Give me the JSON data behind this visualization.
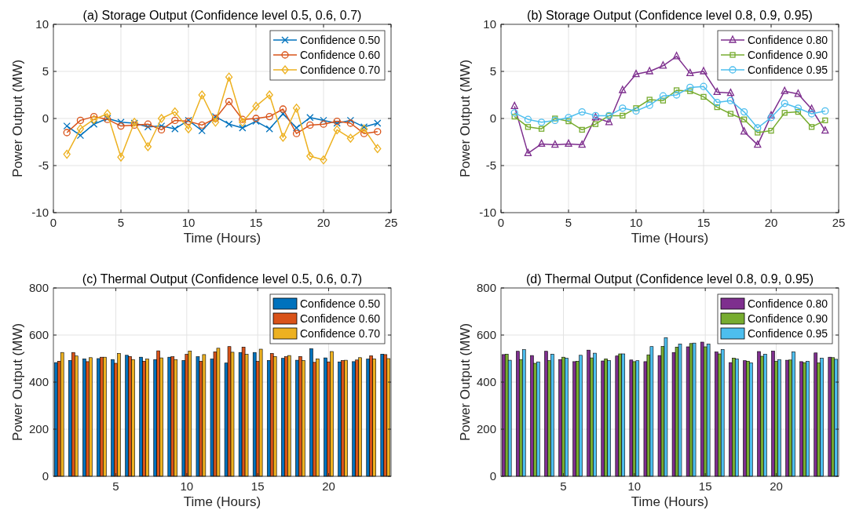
{
  "chart_data": [
    {
      "type": "line",
      "title": "(a) Storage Output (Confidence level 0.5, 0.6, 0.7)",
      "xlabel": "Time (Hours)",
      "ylabel": "Power Output (MW)",
      "x": [
        1,
        2,
        3,
        4,
        5,
        6,
        7,
        8,
        9,
        10,
        11,
        12,
        13,
        14,
        15,
        16,
        17,
        18,
        19,
        20,
        21,
        22,
        23,
        24
      ],
      "xlim": [
        0,
        25
      ],
      "xticks": [
        0,
        5,
        10,
        15,
        20,
        25
      ],
      "ylim": [
        -10,
        10
      ],
      "yticks": [
        -10,
        -5,
        0,
        5,
        10
      ],
      "grid": true,
      "legend": "top right",
      "series": [
        {
          "name": "Confidence 0.50",
          "color": "#0072bd",
          "marker": "cross",
          "values": [
            -0.8,
            -1.8,
            -0.6,
            0,
            -0.4,
            -0.5,
            -0.9,
            -0.8,
            -1.1,
            -0.2,
            -1.3,
            0.2,
            -0.6,
            -1.0,
            -0.3,
            -1.1,
            0.5,
            -1.0,
            0.1,
            -0.2,
            -0.5,
            -0.2,
            -0.9,
            -0.5
          ]
        },
        {
          "name": "Confidence 0.60",
          "color": "#d95319",
          "marker": "circle",
          "values": [
            -1.5,
            -0.2,
            0.2,
            -0.1,
            -0.8,
            -0.7,
            -0.6,
            -1.2,
            -0.2,
            -0.3,
            -0.7,
            0,
            1.8,
            -0.1,
            0,
            0.2,
            1.0,
            -1.6,
            -0.7,
            -0.6,
            -0.3,
            -0.5,
            -1.6,
            -1.4
          ]
        },
        {
          "name": "Confidence 0.70",
          "color": "#edb120",
          "marker": "diamond",
          "values": [
            -3.8,
            -1.1,
            -0.1,
            0.5,
            -4.1,
            -0.4,
            -3.0,
            0,
            0.7,
            -1.1,
            2.5,
            -0.4,
            4.4,
            -0.4,
            1.3,
            2.5,
            -2.0,
            1.1,
            -4.0,
            -4.4,
            -1.2,
            -2.1,
            -1.1,
            -3.2
          ]
        }
      ]
    },
    {
      "type": "line",
      "title": "(b) Storage Output (Confidence level 0.8, 0.9, 0.95)",
      "xlabel": "Time (Hours)",
      "ylabel": "Power Output (MW)",
      "x": [
        1,
        2,
        3,
        4,
        5,
        6,
        7,
        8,
        9,
        10,
        11,
        12,
        13,
        14,
        15,
        16,
        17,
        18,
        19,
        20,
        21,
        22,
        23,
        24
      ],
      "xlim": [
        0,
        25
      ],
      "xticks": [
        0,
        5,
        10,
        15,
        20,
        25
      ],
      "ylim": [
        -10,
        10
      ],
      "yticks": [
        -10,
        -5,
        0,
        5,
        10
      ],
      "grid": true,
      "legend": "top right",
      "series": [
        {
          "name": "Confidence 0.80",
          "color": "#7e2f8e",
          "marker": "triangle",
          "values": [
            1.3,
            -3.7,
            -2.7,
            -2.8,
            -2.7,
            -2.8,
            0.1,
            -0.4,
            3.0,
            4.7,
            5.0,
            5.6,
            6.6,
            4.8,
            5.0,
            2.8,
            2.7,
            -1.4,
            -2.8,
            0.3,
            2.9,
            2.6,
            1.0,
            -1.3
          ]
        },
        {
          "name": "Confidence 0.90",
          "color": "#77ac30",
          "marker": "square",
          "values": [
            0.2,
            -0.9,
            -1.1,
            0,
            -0.3,
            -1.2,
            -0.6,
            0.3,
            0.3,
            1.1,
            2.0,
            1.9,
            3.0,
            2.9,
            2.3,
            1.2,
            0.5,
            -0.1,
            -1.5,
            -1.3,
            0.6,
            0.7,
            -0.9,
            -0.2
          ]
        },
        {
          "name": "Confidence 0.95",
          "color": "#4dbeee",
          "marker": "circle",
          "values": [
            0.6,
            -0.1,
            -0.4,
            -0.2,
            0.1,
            0.7,
            0.3,
            0.3,
            1.1,
            0.8,
            1.4,
            2.4,
            2.5,
            3.3,
            3.4,
            1.7,
            1.9,
            0.7,
            -1.0,
            0.1,
            1.6,
            1.1,
            0.5,
            0.8
          ]
        }
      ]
    },
    {
      "type": "bar",
      "title": "(c) Thermal Output (Confidence level 0.5, 0.6, 0.7)",
      "xlabel": "Time (Hours)",
      "ylabel": "Power Output (MW)",
      "x": [
        1,
        2,
        3,
        4,
        5,
        6,
        7,
        8,
        9,
        10,
        11,
        12,
        13,
        14,
        15,
        16,
        17,
        18,
        19,
        20,
        21,
        22,
        23,
        24
      ],
      "xlim": [
        0.6,
        24.4
      ],
      "xticks": [
        5,
        10,
        15,
        20
      ],
      "ylim": [
        0,
        800
      ],
      "yticks": [
        0,
        200,
        400,
        600,
        800
      ],
      "grid": true,
      "legend": "top right",
      "series": [
        {
          "name": "Confidence 0.50",
          "color": "#0072bd",
          "values": [
            483,
            492,
            499,
            500,
            496,
            514,
            506,
            496,
            506,
            492,
            508,
            498,
            481,
            526,
            526,
            492,
            501,
            493,
            542,
            503,
            486,
            487,
            498,
            519
          ]
        },
        {
          "name": "Confidence 0.60",
          "color": "#d95319",
          "values": [
            489,
            526,
            487,
            506,
            480,
            509,
            489,
            533,
            508,
            518,
            489,
            529,
            551,
            549,
            488,
            522,
            508,
            509,
            484,
            486,
            492,
            494,
            512,
            517
          ]
        },
        {
          "name": "Confidence 0.70",
          "color": "#edb120",
          "values": [
            526,
            511,
            504,
            506,
            522,
            496,
            498,
            503,
            496,
            532,
            517,
            544,
            527,
            518,
            540,
            509,
            513,
            492,
            499,
            530,
            493,
            504,
            499,
            500
          ]
        }
      ]
    },
    {
      "type": "bar",
      "title": "(d) Thermal Output (Confidence level 0.8, 0.9, 0.95)",
      "xlabel": "Time (Hours)",
      "ylabel": "Power Output (MW)",
      "x": [
        1,
        2,
        3,
        4,
        5,
        6,
        7,
        8,
        9,
        10,
        11,
        12,
        13,
        14,
        15,
        16,
        17,
        18,
        19,
        20,
        21,
        22,
        23,
        24
      ],
      "xlim": [
        0.6,
        24.4
      ],
      "xticks": [
        5,
        10,
        15,
        20
      ],
      "ylim": [
        0,
        800
      ],
      "yticks": [
        0,
        200,
        400,
        600,
        800
      ],
      "grid": true,
      "legend": "top right",
      "series": [
        {
          "name": "Confidence 0.80",
          "color": "#7e2f8e",
          "values": [
            517,
            531,
            513,
            531,
            496,
            487,
            536,
            490,
            511,
            494,
            487,
            513,
            526,
            550,
            570,
            528,
            483,
            491,
            530,
            532,
            493,
            487,
            524,
            506
          ]
        },
        {
          "name": "Confidence 0.90",
          "color": "#77ac30",
          "values": [
            519,
            496,
            480,
            491,
            506,
            489,
            503,
            499,
            520,
            487,
            516,
            552,
            549,
            564,
            550,
            520,
            502,
            489,
            510,
            488,
            494,
            483,
            482,
            504
          ]
        },
        {
          "name": "Confidence 0.95",
          "color": "#4dbeee",
          "values": [
            493,
            538,
            486,
            519,
            502,
            514,
            523,
            492,
            520,
            491,
            551,
            589,
            562,
            566,
            562,
            539,
            498,
            482,
            519,
            496,
            529,
            489,
            502,
            497
          ]
        }
      ]
    }
  ]
}
